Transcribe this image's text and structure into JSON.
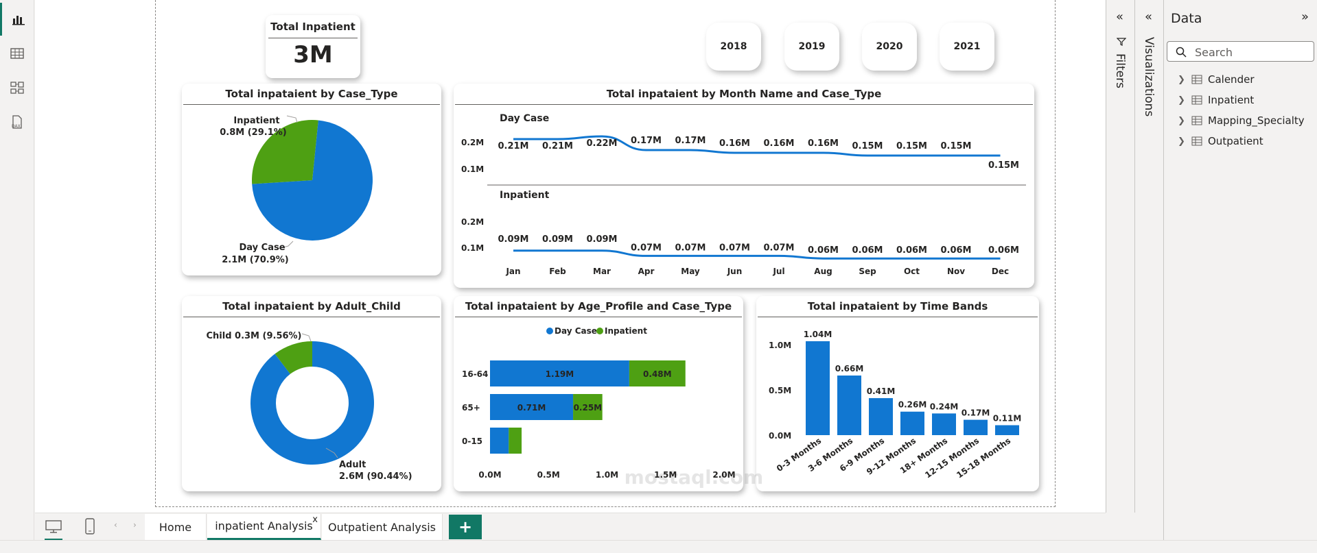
{
  "kpi": {
    "label": "Total Inpatient",
    "value": "3M"
  },
  "years": [
    "2018",
    "2019",
    "2020",
    "2021"
  ],
  "pie_case": {
    "title": "Total inpataient by Case_Type",
    "inpatient_label": "Inpatient",
    "inpatient_value": "0.8M (29.1%)",
    "daycase_label": "Day Case",
    "daycase_value": "2.1M (70.9%)"
  },
  "line_month": {
    "title": "Total inpataient by Month Name and Case_Type",
    "day_case_label": "Day Case",
    "inpatient_label": "Inpatient",
    "y_ticks": [
      "0.2M",
      "0.1M"
    ]
  },
  "donut": {
    "title": "Total inpataient by Adult_Child",
    "child_label": "Child 0.3M (9.56%)",
    "adult_label": "Adult",
    "adult_value": "2.6M (90.44%)"
  },
  "age_bar": {
    "title": "Total inpataient by Age_Profile and Case_Type",
    "legend_day": "Day Case",
    "legend_inpatient": "Inpatient"
  },
  "time_bands": {
    "title": "Total inpataient by Time Bands"
  },
  "chart_data": [
    {
      "type": "pie",
      "title": "Total inpataient by Case_Type",
      "categories": [
        "Day Case",
        "Inpatient"
      ],
      "values": [
        2.1,
        0.8
      ],
      "labels": [
        "2.1M (70.9%)",
        "0.8M (29.1%)"
      ],
      "percent": [
        70.9,
        29.1
      ],
      "colors": [
        "#1177d1",
        "#4ea013"
      ]
    },
    {
      "type": "line",
      "title": "Total inpataient by Month Name and Case_Type",
      "categories": [
        "Jan",
        "Feb",
        "Mar",
        "Apr",
        "May",
        "Jun",
        "Jul",
        "Aug",
        "Sep",
        "Oct",
        "Nov",
        "Dec"
      ],
      "series": [
        {
          "name": "Day Case",
          "values": [
            0.21,
            0.21,
            0.22,
            0.17,
            0.17,
            0.16,
            0.16,
            0.16,
            0.15,
            0.15,
            0.15,
            0.15
          ],
          "labels": [
            "0.21M",
            "0.21M",
            "0.22M",
            "0.17M",
            "0.17M",
            "0.16M",
            "0.16M",
            "0.16M",
            "0.15M",
            "0.15M",
            "0.15M",
            "0.15M"
          ]
        },
        {
          "name": "Inpatient",
          "values": [
            0.09,
            0.09,
            0.09,
            0.07,
            0.07,
            0.07,
            0.07,
            0.06,
            0.06,
            0.06,
            0.06,
            0.06
          ],
          "labels": [
            "0.09M",
            "0.09M",
            "0.09M",
            "0.07M",
            "0.07M",
            "0.07M",
            "0.07M",
            "0.06M",
            "0.06M",
            "0.06M",
            "0.06M",
            "0.06M"
          ]
        }
      ],
      "ylim": [
        0,
        0.25
      ],
      "color": "#1177d1"
    },
    {
      "type": "pie",
      "title": "Total inpataient by Adult_Child",
      "categories": [
        "Adult",
        "Child"
      ],
      "values": [
        2.6,
        0.3
      ],
      "percent": [
        90.44,
        9.56
      ],
      "colors": [
        "#1177d1",
        "#4ea013"
      ]
    },
    {
      "type": "bar",
      "title": "Total inpataient by Age_Profile and Case_Type",
      "orientation": "horizontal-stacked",
      "categories": [
        "16-64",
        "65+",
        "0-15"
      ],
      "series": [
        {
          "name": "Day Case",
          "values": [
            1.19,
            0.71,
            0.16
          ],
          "labels": [
            "1.19M",
            "0.71M",
            ""
          ]
        },
        {
          "name": "Inpatient",
          "values": [
            0.48,
            0.25,
            0.11
          ],
          "labels": [
            "0.48M",
            "0.25M",
            ""
          ]
        }
      ],
      "x_ticks": [
        "0.0M",
        "0.5M",
        "1.0M",
        "1.5M",
        "2.0M"
      ],
      "xlim": [
        0,
        2.0
      ],
      "legend": "top",
      "colors": [
        "#1177d1",
        "#4ea013"
      ]
    },
    {
      "type": "bar",
      "title": "Total inpataient by Time Bands",
      "categories": [
        "0-3 Months",
        "3-6 Months",
        "6-9 Months",
        "9-12 Months",
        "18+ Months",
        "12-15 Months",
        "15-18 Months"
      ],
      "values": [
        1.04,
        0.66,
        0.41,
        0.26,
        0.24,
        0.17,
        0.11
      ],
      "labels": [
        "1.04M",
        "0.66M",
        "0.41M",
        "0.26M",
        "0.24M",
        "0.17M",
        "0.11M"
      ],
      "y_ticks": [
        "1.0M",
        "0.5M",
        "0.0M"
      ],
      "ylim": [
        0,
        1.1
      ],
      "color": "#1177d1"
    }
  ],
  "panes": {
    "filters": "Filters",
    "visualizations": "Visualizations",
    "data_title": "Data",
    "search_placeholder": "Search",
    "tables": [
      "Calender",
      "Inpatient",
      "Mapping_Specialty",
      "Outpatient"
    ]
  },
  "tabs": {
    "items": [
      "Home",
      "inpatient Analysis",
      "Outpatient Analysis"
    ],
    "add": "+",
    "close": "x"
  },
  "watermark": "mostaql.com"
}
